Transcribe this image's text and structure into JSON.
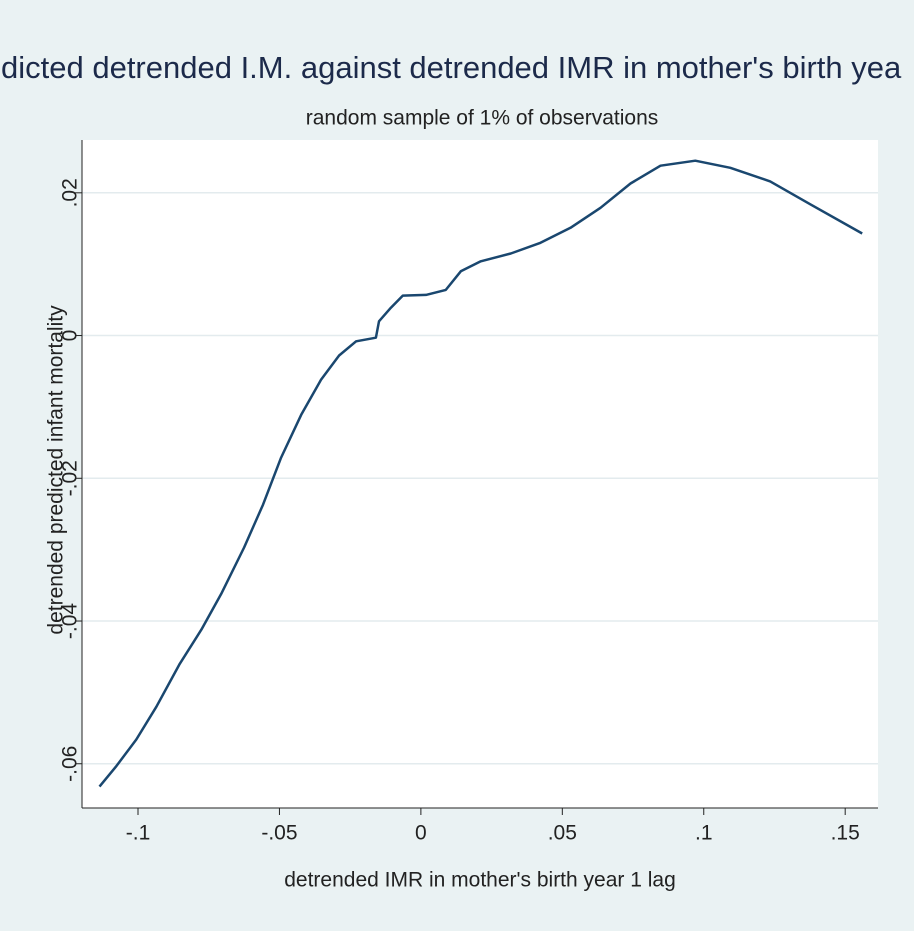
{
  "chart_data": {
    "type": "line",
    "title": "dicted detrended I.M. against detrended IMR in mother's birth yea",
    "subtitle": "random sample of 1% of observations",
    "x_label": "detrended IMR in mother's birth year 1 lag",
    "y_label": "detrended predicted infant mortality",
    "xlim": [
      -0.1198,
      0.1616
    ],
    "ylim": [
      -0.0662,
      0.0274
    ],
    "xticks": [
      {
        "value": -0.1,
        "label": "-.1"
      },
      {
        "value": -0.05,
        "label": "-.05"
      },
      0,
      {
        "value": 0.05,
        "label": ".05"
      },
      {
        "value": 0.1,
        "label": ".1"
      },
      {
        "value": 0.15,
        "label": ".15"
      }
    ],
    "yticks": [
      {
        "value": -0.06,
        "label": "-.06"
      },
      {
        "value": -0.04,
        "label": "-.04"
      },
      {
        "value": -0.02,
        "label": "-.02"
      },
      0,
      {
        "value": 0.02,
        "label": ".02"
      }
    ],
    "grid": true,
    "series": [
      {
        "color": "#1a476f",
        "x": [
          -0.1136,
          -0.1076,
          -0.1006,
          -0.0935,
          -0.0854,
          -0.0776,
          -0.0706,
          -0.0625,
          -0.0558,
          -0.0494,
          -0.0423,
          -0.0353,
          -0.0289,
          -0.0229,
          -0.0159,
          -0.0148,
          -0.0106,
          -0.0064,
          0.0018,
          0.0088,
          0.0141,
          0.0212,
          0.0318,
          0.0423,
          0.0529,
          0.0635,
          0.0741,
          0.0847,
          0.097,
          0.1094,
          0.1235,
          0.1376,
          0.156
        ],
        "values": [
          -0.0632,
          -0.0603,
          -0.0566,
          -0.052,
          -0.0461,
          -0.0412,
          -0.0362,
          -0.0297,
          -0.0237,
          -0.0171,
          -0.0111,
          -0.0062,
          -0.0028,
          -0.0008,
          -0.0003,
          0.002,
          0.0039,
          0.0056,
          0.0057,
          0.0064,
          0.009,
          0.0104,
          0.0115,
          0.013,
          0.0151,
          0.0179,
          0.0213,
          0.0238,
          0.0245,
          0.0235,
          0.0216,
          0.0184,
          0.0143
        ]
      }
    ]
  }
}
